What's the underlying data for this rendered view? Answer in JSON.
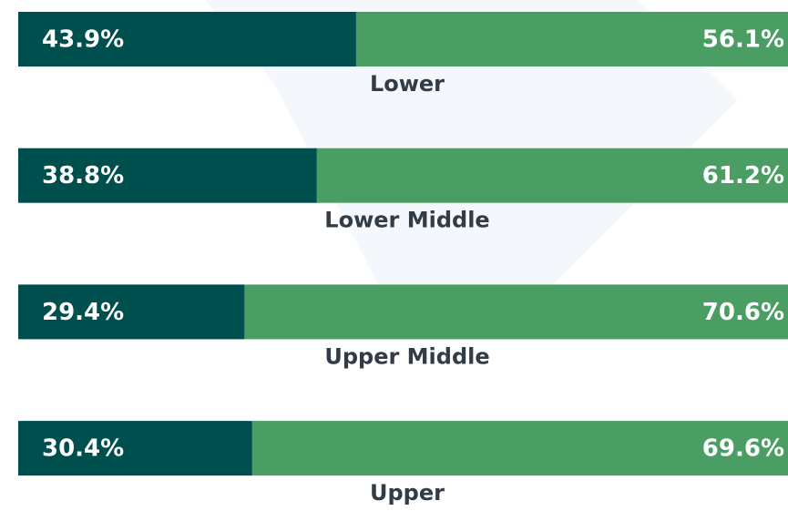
{
  "chart_data": {
    "type": "stacked-bar-100",
    "categories": [
      "Lower",
      "Lower Middle",
      "Upper Middle",
      "Upper"
    ],
    "series": [
      {
        "color": "#004f4f",
        "values": [
          43.9,
          38.8,
          29.4,
          30.4
        ],
        "value_labels": [
          "43.9%",
          "38.8%",
          "29.4%",
          "30.4%"
        ]
      },
      {
        "color": "#4a9e64",
        "values": [
          56.1,
          61.2,
          70.6,
          69.6
        ],
        "value_labels": [
          "56.1%",
          "61.2%",
          "70.6%",
          "69.6%"
        ]
      }
    ]
  }
}
